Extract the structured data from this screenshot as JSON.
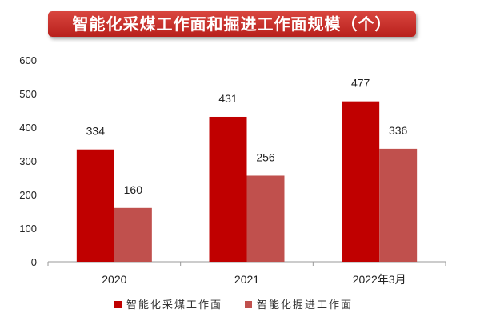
{
  "chart_data": {
    "type": "bar",
    "title": "智能化采煤工作面和掘进工作面规模（个）",
    "categories": [
      "2020",
      "2021",
      "2022年3月"
    ],
    "series": [
      {
        "name": "智能化采煤工作面",
        "values": [
          334,
          431,
          477
        ],
        "color": "#C00000"
      },
      {
        "name": "智能化掘进工作面",
        "values": [
          160,
          256,
          336
        ],
        "color": "#C0504D"
      }
    ],
    "ylim": [
      0,
      600
    ],
    "yticks": [
      0,
      100,
      200,
      300,
      400,
      500,
      600
    ],
    "xlabel": "",
    "ylabel": "",
    "grid": false,
    "legend": "bottom"
  }
}
